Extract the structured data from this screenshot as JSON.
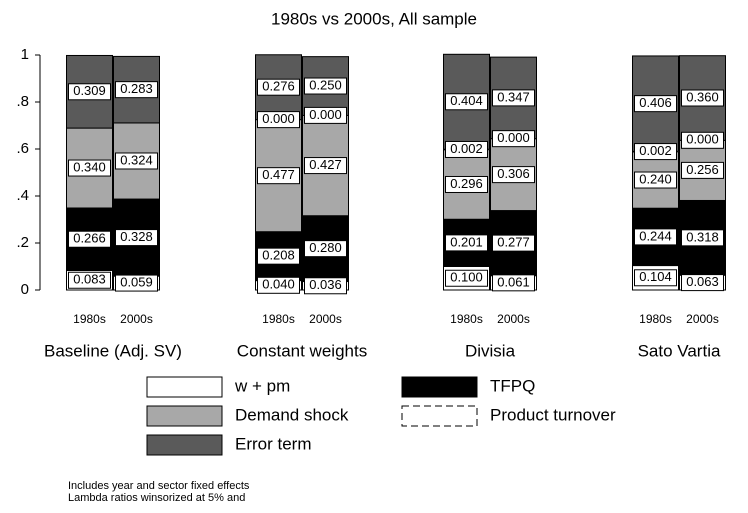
{
  "chart_data": {
    "type": "stacked_bar",
    "subtitle": "1980s vs 2000s, All sample",
    "categories": [
      "1980s",
      "2000s",
      "1980s",
      "2000s",
      "1980s",
      "2000s",
      "1980s",
      "2000s"
    ],
    "groups": [
      "Baseline (Adj. SV)",
      "Constant weights",
      "Divisia",
      "Sato Vartia"
    ],
    "series": [
      {
        "name": "w + pm",
        "color": "#ffffff",
        "values": [
          0.083,
          0.059,
          0.04,
          0.036,
          0.1,
          0.061,
          0.104,
          0.063
        ],
        "value_labels": [
          "0.083",
          "0.059",
          "0.040",
          "0.036",
          "0.100",
          "0.061",
          "0.104",
          "0.063"
        ]
      },
      {
        "name": "TFPQ",
        "color": "#000000",
        "values": [
          0.266,
          0.328,
          0.208,
          0.28,
          0.201,
          0.277,
          0.244,
          0.318
        ],
        "value_labels": [
          "0.266",
          "0.328",
          "0.208",
          "0.280",
          "0.201",
          "0.277",
          "0.244",
          "0.318"
        ]
      },
      {
        "name": "Demand shock",
        "color": "#a8a8a8",
        "values": [
          0.34,
          0.324,
          0.477,
          0.427,
          0.296,
          0.306,
          0.24,
          0.256
        ],
        "value_labels": [
          "0.340",
          "0.324",
          "0.477",
          "0.427",
          "0.296",
          "0.306",
          "0.240",
          "0.256"
        ]
      },
      {
        "name": "Product turnover",
        "color": "#ffffff",
        "line_style": "dashed",
        "values": [
          null,
          null,
          0,
          0,
          0.002,
          0,
          0.002,
          0
        ],
        "value_labels": [
          null,
          null,
          "0.000",
          "0.000",
          "0.002",
          "0.000",
          "0.002",
          "0.000"
        ]
      },
      {
        "name": "Error term",
        "color": "#5a5a5a",
        "values": [
          0.309,
          0.283,
          0.276,
          0.25,
          0.404,
          0.347,
          0.406,
          0.36
        ],
        "value_labels": [
          "0.309",
          "0.283",
          "0.276",
          "0.250",
          "0.404",
          "0.347",
          "0.406",
          "0.360"
        ]
      }
    ],
    "ylim": [
      0,
      1
    ],
    "yticks": [
      0,
      {
        "value": 0.2,
        "label": ".2"
      },
      {
        "value": 0.4,
        "label": ".4"
      },
      {
        "value": 0.6,
        "label": ".6"
      },
      {
        "value": 0.8,
        "label": ".8"
      },
      1
    ],
    "notes": [
      "Includes year and sector fixed effects",
      "Lambda ratios winsorized at 5% and"
    ]
  }
}
